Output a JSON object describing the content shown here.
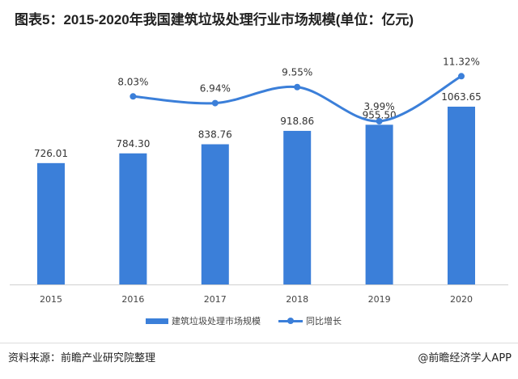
{
  "title": "图表5：2015-2020年我国建筑垃圾处理行业市场规模(单位：亿元)",
  "chart_data": {
    "type": "bar+line",
    "title": "图表5：2015-2020年我国建筑垃圾处理行业市场规模(单位：亿元)",
    "categories": [
      "2015",
      "2016",
      "2017",
      "2018",
      "2019",
      "2020"
    ],
    "series": [
      {
        "name": "建筑垃圾处理市场规模",
        "type": "bar",
        "values": [
          726.01,
          784.3,
          838.76,
          918.86,
          955.5,
          1063.65
        ],
        "labels": [
          "726.01",
          "784.30",
          "838.76",
          "918.86",
          "955.50",
          "1063.65"
        ]
      },
      {
        "name": "同比增长",
        "type": "line",
        "values": [
          null,
          8.03,
          6.94,
          9.55,
          3.99,
          11.32
        ],
        "labels": [
          "",
          "8.03%",
          "6.94%",
          "9.55%",
          "3.99%",
          "11.32%"
        ]
      }
    ],
    "legend_position": "bottom",
    "grid": false,
    "colors": {
      "bar": "#3b7fd9",
      "line": "#3b7fd9"
    }
  },
  "source": "资料来源：前瞻产业研究院整理",
  "credit": "@前瞻经济学人APP",
  "watermark": "前瞻产业研究院"
}
